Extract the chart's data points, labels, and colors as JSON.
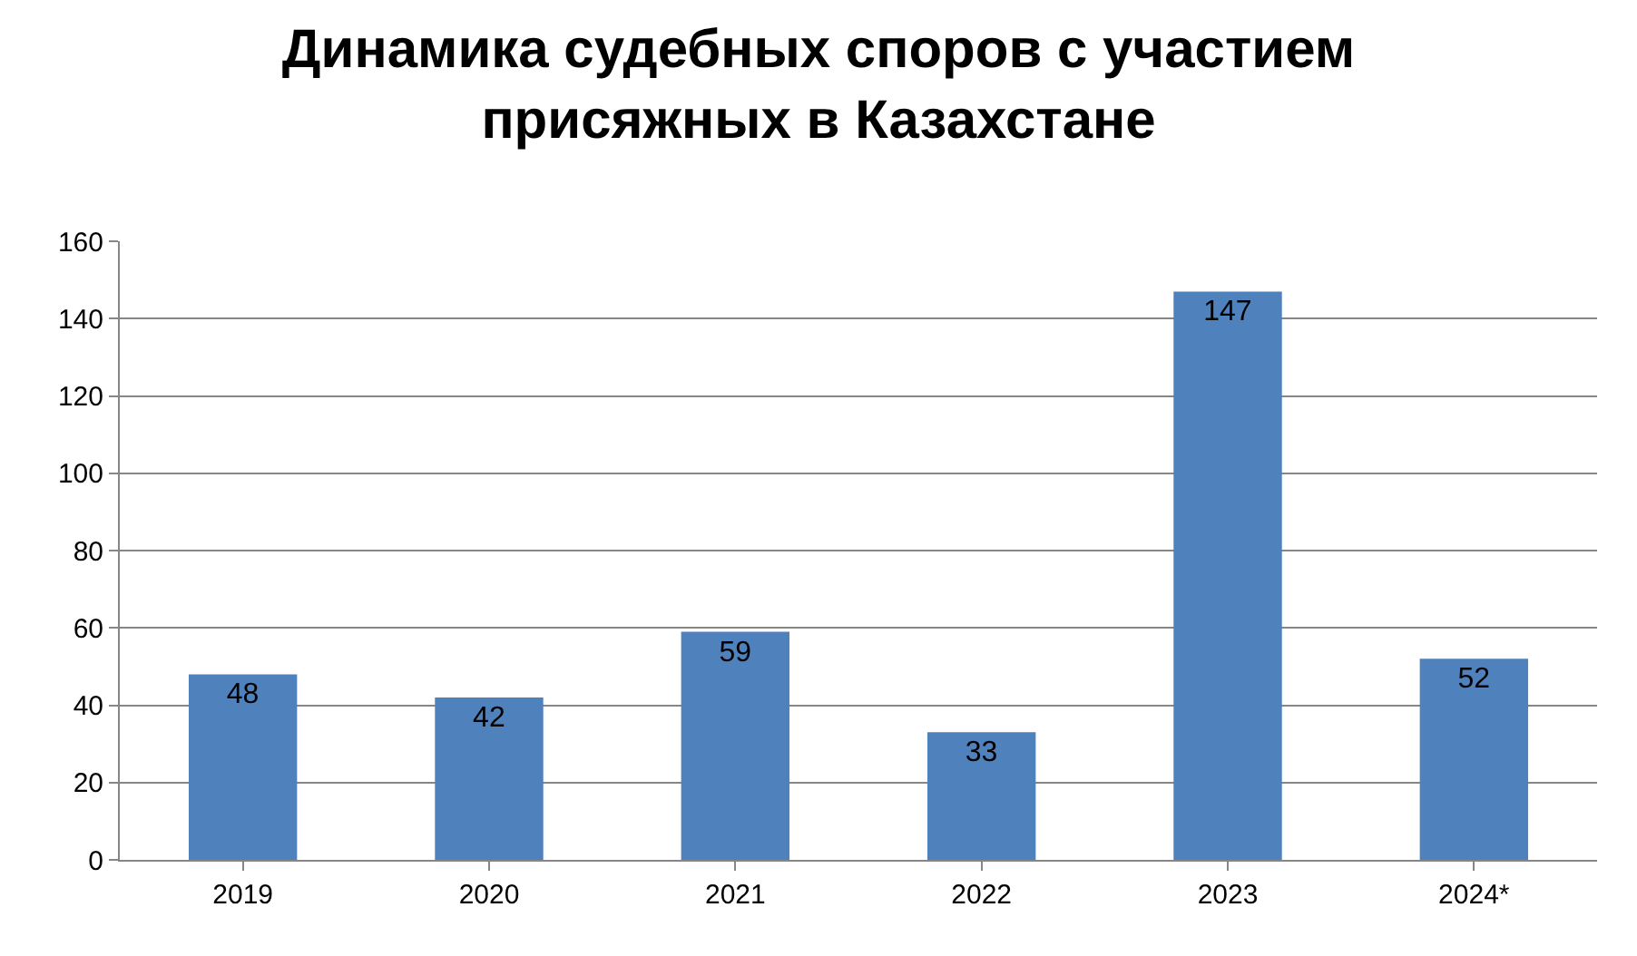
{
  "chart_data": {
    "type": "bar",
    "title": "Динамика судебных споров с участием\nприсяжных в Казахстане",
    "categories": [
      "2019",
      "2020",
      "2021",
      "2022",
      "2023",
      "2024*"
    ],
    "values": [
      48,
      42,
      59,
      33,
      147,
      52
    ],
    "color": "#4f81bd",
    "ylim": [
      0,
      160
    ],
    "yticks": [
      0,
      20,
      40,
      60,
      80,
      100,
      120,
      140,
      160
    ],
    "grid": "y",
    "data_labels": true
  }
}
